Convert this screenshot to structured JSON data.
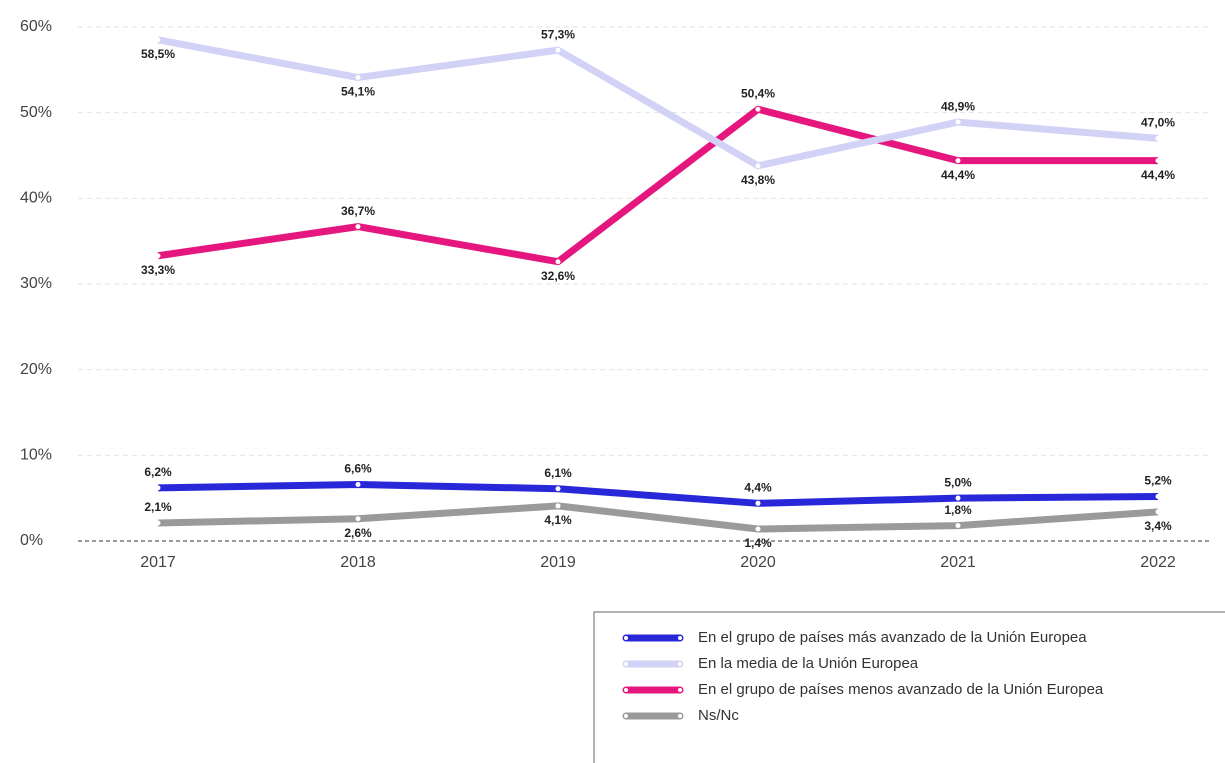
{
  "chart_data": {
    "type": "line",
    "categories": [
      "2017",
      "2018",
      "2019",
      "2020",
      "2021",
      "2022"
    ],
    "ylim": [
      0,
      60
    ],
    "yticks": [
      {
        "value": 0,
        "label": "0%"
      },
      {
        "value": 10,
        "label": "10%"
      },
      {
        "value": 20,
        "label": "20%"
      },
      {
        "value": 30,
        "label": "30%"
      },
      {
        "value": 40,
        "label": "40%"
      },
      {
        "value": 50,
        "label": "50%"
      },
      {
        "value": 60,
        "label": "60%"
      }
    ],
    "grid": true,
    "legend": "bottom-right",
    "series": [
      {
        "name": "En el grupo de países más avanzado de la Unión Europea",
        "color": "#2828d8",
        "values": [
          6.2,
          6.6,
          6.1,
          4.4,
          5.0,
          5.2
        ],
        "value_labels": [
          "6,2%",
          "6,6%",
          "6,1%",
          "4,4%",
          "5,0%",
          "5,2%"
        ]
      },
      {
        "name": "En la media de la Unión Europea",
        "color": "#d2d2f6",
        "values": [
          58.5,
          54.1,
          57.3,
          43.8,
          48.9,
          47.0
        ],
        "value_labels": [
          "58,5%",
          "54,1%",
          "57,3%",
          "43,8%",
          "48,9%",
          "47,0%"
        ]
      },
      {
        "name": "En el grupo de países menos avanzado de la Unión Europea",
        "color": "#e5177f",
        "values": [
          33.3,
          36.7,
          32.6,
          50.4,
          44.4,
          44.4
        ],
        "value_labels": [
          "33,3%",
          "36,7%",
          "32,6%",
          "50,4%",
          "44,4%",
          "44,4%"
        ]
      },
      {
        "name": "Ns/Nc",
        "color": "#9a9a9a",
        "values": [
          2.1,
          2.6,
          4.1,
          1.4,
          1.8,
          3.4
        ],
        "value_labels": [
          "2,1%",
          "2,6%",
          "4,1%",
          "1,4%",
          "1,8%",
          "3,4%"
        ]
      }
    ]
  }
}
